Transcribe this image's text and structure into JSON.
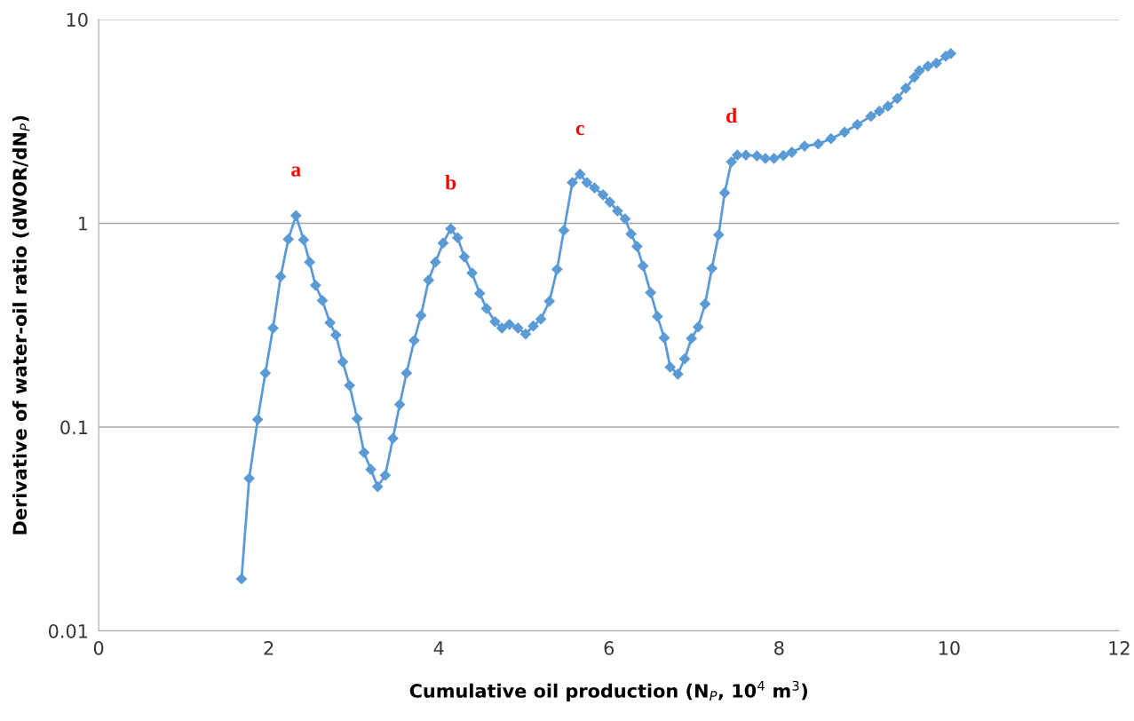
{
  "chart_data": {
    "type": "line",
    "xlabel": "Cumulative oil production (N$_{P}$, 10$^{4}$ m$^{3}$)",
    "ylabel": "Derivative of water-oil ratio (dWOR/dN$_{P}$)",
    "log": "y",
    "grid": "y",
    "marker": "diamond",
    "line_style": "solid",
    "legend": false,
    "xlim": [
      0,
      12
    ],
    "xticks": [
      0,
      2,
      4,
      6,
      8,
      10,
      12
    ],
    "ylim": [
      0.01,
      10
    ],
    "yticks": [
      0.01,
      0.1,
      1,
      10
    ],
    "series": [
      {
        "color": "#5b9bd5",
        "x": [
          1.68,
          1.77,
          1.87,
          1.96,
          2.05,
          2.14,
          2.23,
          2.32,
          2.41,
          2.48,
          2.55,
          2.63,
          2.72,
          2.79,
          2.87,
          2.95,
          3.04,
          3.12,
          3.2,
          3.28,
          3.37,
          3.46,
          3.54,
          3.62,
          3.71,
          3.79,
          3.88,
          3.96,
          4.05,
          4.14,
          4.22,
          4.3,
          4.39,
          4.48,
          4.56,
          4.66,
          4.74,
          4.83,
          4.93,
          5.02,
          5.11,
          5.2,
          5.3,
          5.39,
          5.47,
          5.57,
          5.66,
          5.74,
          5.83,
          5.93,
          6.01,
          6.1,
          6.19,
          6.26,
          6.33,
          6.4,
          6.49,
          6.57,
          6.65,
          6.72,
          6.81,
          6.89,
          6.97,
          7.05,
          7.13,
          7.21,
          7.29,
          7.36,
          7.44,
          7.51,
          7.61,
          7.74,
          7.84,
          7.94,
          8.05,
          8.15,
          8.3,
          8.46,
          8.61,
          8.77,
          8.92,
          9.08,
          9.18,
          9.28,
          9.39,
          9.49,
          9.59,
          9.65,
          9.75,
          9.85,
          9.96,
          10.02
        ],
        "values": [
          0.018,
          0.056,
          0.109,
          0.184,
          0.306,
          0.548,
          0.835,
          1.09,
          0.83,
          0.645,
          0.496,
          0.418,
          0.325,
          0.283,
          0.209,
          0.16,
          0.11,
          0.075,
          0.062,
          0.051,
          0.058,
          0.088,
          0.129,
          0.184,
          0.266,
          0.353,
          0.526,
          0.645,
          0.8,
          0.94,
          0.85,
          0.684,
          0.57,
          0.453,
          0.382,
          0.329,
          0.306,
          0.319,
          0.306,
          0.286,
          0.313,
          0.339,
          0.414,
          0.594,
          0.923,
          1.585,
          1.74,
          1.585,
          1.49,
          1.38,
          1.27,
          1.15,
          1.05,
          0.887,
          0.77,
          0.618,
          0.457,
          0.349,
          0.274,
          0.197,
          0.182,
          0.216,
          0.272,
          0.31,
          0.402,
          0.6,
          0.878,
          1.41,
          2.0,
          2.16,
          2.16,
          2.14,
          2.08,
          2.08,
          2.15,
          2.23,
          2.39,
          2.45,
          2.6,
          2.8,
          3.05,
          3.35,
          3.55,
          3.75,
          4.1,
          4.6,
          5.2,
          5.6,
          5.9,
          6.1,
          6.6,
          6.8
        ]
      }
    ],
    "annotations": [
      {
        "text": "a",
        "x": 2.32,
        "y": 1.09
      },
      {
        "text": "b",
        "x": 4.14,
        "y": 0.94
      },
      {
        "text": "c",
        "x": 5.66,
        "y": 1.74
      },
      {
        "text": "d",
        "x": 7.44,
        "y": 2.0
      }
    ]
  }
}
